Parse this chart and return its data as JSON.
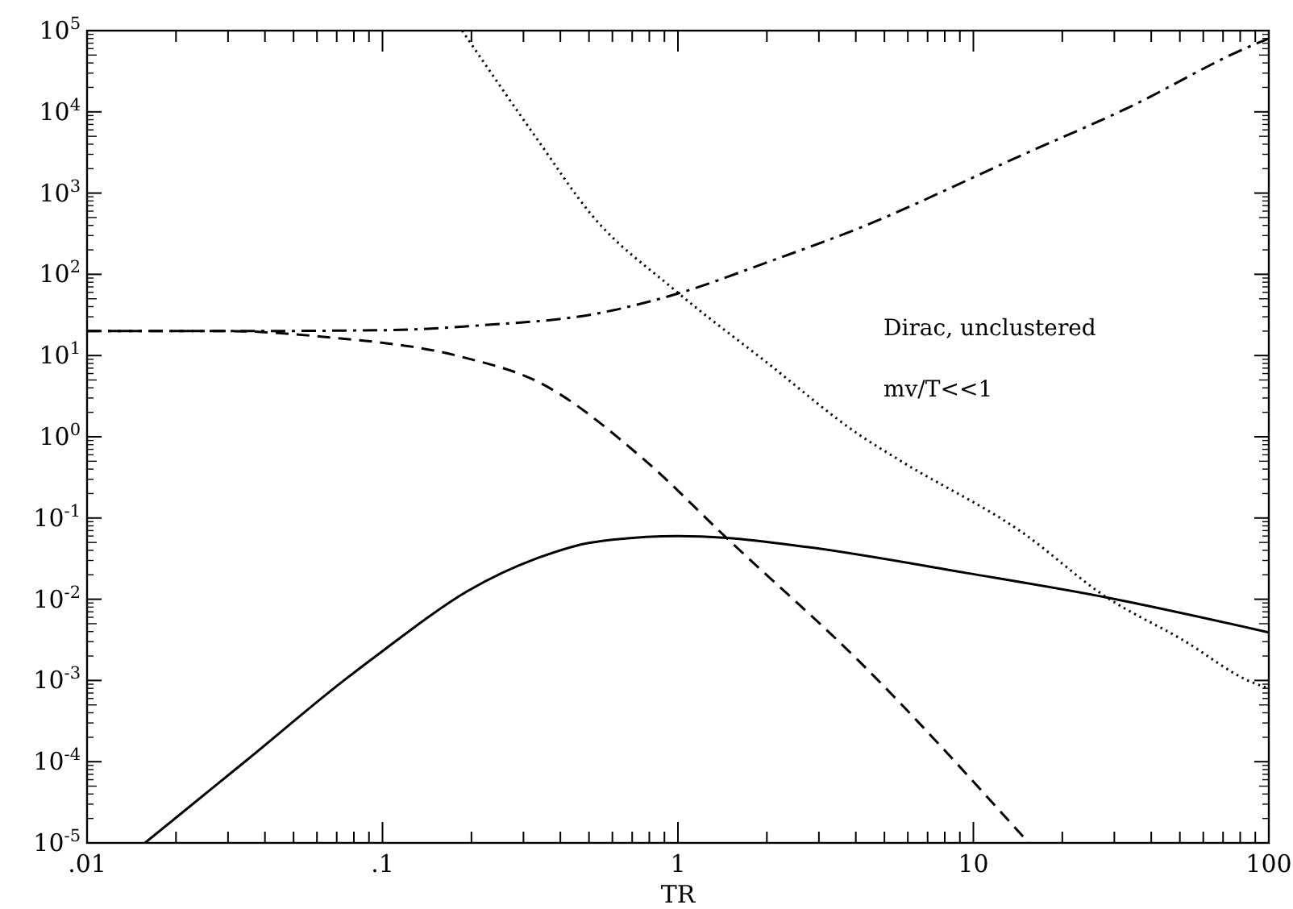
{
  "chart_data": {
    "type": "line",
    "xlabel": "TR",
    "log": "xy",
    "grid": false,
    "tick_labels": "xy",
    "xlim": [
      0.01,
      100
    ],
    "ylim": [
      1e-05,
      100000.0
    ],
    "xticks": [
      {
        "value": 0.01,
        "label": ".01"
      },
      {
        "value": 0.02,
        "label": null
      },
      {
        "value": 0.03,
        "label": null
      },
      {
        "value": 0.04,
        "label": null
      },
      {
        "value": 0.05,
        "label": null
      },
      {
        "value": 0.06,
        "label": null
      },
      {
        "value": 0.07,
        "label": null
      },
      {
        "value": 0.08,
        "label": null
      },
      {
        "value": 0.09,
        "label": null
      },
      {
        "value": 0.1,
        "label": ".1"
      },
      {
        "value": 0.2,
        "label": null
      },
      {
        "value": 0.3,
        "label": null
      },
      {
        "value": 0.4,
        "label": null
      },
      {
        "value": 0.5,
        "label": null
      },
      {
        "value": 0.6,
        "label": null
      },
      {
        "value": 0.7,
        "label": null
      },
      {
        "value": 0.8,
        "label": null
      },
      {
        "value": 0.9,
        "label": null
      },
      1,
      {
        "value": 2,
        "label": null
      },
      {
        "value": 3,
        "label": null
      },
      {
        "value": 4,
        "label": null
      },
      {
        "value": 5,
        "label": null
      },
      {
        "value": 6,
        "label": null
      },
      {
        "value": 7,
        "label": null
      },
      {
        "value": 8,
        "label": null
      },
      {
        "value": 9,
        "label": null
      },
      10,
      {
        "value": 20,
        "label": null
      },
      {
        "value": 30,
        "label": null
      },
      {
        "value": 40,
        "label": null
      },
      {
        "value": 50,
        "label": null
      },
      {
        "value": 60,
        "label": null
      },
      {
        "value": 70,
        "label": null
      },
      {
        "value": 80,
        "label": null
      },
      {
        "value": 90,
        "label": null
      },
      100
    ],
    "yticks": [
      {
        "value": 1e-05,
        "label": "10$^{-5}$"
      },
      {
        "value": 0.0001,
        "label": "10$^{-4}$"
      },
      {
        "value": 0.001,
        "label": "10$^{-3}$"
      },
      {
        "value": 0.01,
        "label": "10$^{-2}$"
      },
      {
        "value": 0.1,
        "label": "10$^{-1}$"
      },
      {
        "value": 1,
        "label": "10$^{0}$"
      },
      {
        "value": 10,
        "label": "10$^{1}$"
      },
      {
        "value": 100,
        "label": "10$^{2}$"
      },
      {
        "value": 1000,
        "label": "10$^{3}$"
      },
      {
        "value": 10000,
        "label": "10$^{4}$"
      },
      {
        "value": 100000,
        "label": "10$^{5}$"
      }
    ],
    "annotations": [
      "Dirac, unclustered",
      "mv/T<<1"
    ],
    "series": [
      {
        "color": "#000000",
        "line_style": "solid",
        "x": [
          0.0157,
          0.035,
          0.074,
          0.1,
          0.194,
          0.334,
          0.51,
          1,
          1.46,
          2.73,
          9.5,
          28.3,
          100
        ],
        "values": [
          1e-05,
          0.000107,
          0.001,
          0.0023,
          0.0126,
          0.032,
          0.05,
          0.06,
          0.057,
          0.044,
          0.021,
          0.0105,
          0.0039
        ]
      },
      {
        "color": "#000000",
        "line_style": "dashed",
        "x": [
          0.01,
          0.03,
          0.063,
          0.186,
          0.334,
          0.77,
          1.46,
          4.12,
          15.4
        ],
        "values": [
          20,
          20,
          17,
          9.6,
          4.8,
          0.52,
          0.057,
          0.0017,
          1e-05
        ]
      },
      {
        "color": "#000000",
        "line_style": "dotted",
        "x": [
          0.186,
          0.334,
          0.51,
          0.97,
          2,
          4.12,
          5.75,
          14.5,
          28.3,
          50.8,
          87.7,
          100
        ],
        "values": [
          100000,
          4600,
          540,
          65,
          8.2,
          1.05,
          0.49,
          0.068,
          0.0105,
          0.0032,
          0.00095,
          0.0008
        ]
      },
      {
        "color": "#000000",
        "line_style": "dashdot",
        "x": [
          0.01,
          0.03,
          0.1,
          0.22,
          0.51,
          1,
          2,
          4.1,
          14.5,
          33,
          87,
          100
        ],
        "values": [
          20,
          20,
          20.5,
          23.7,
          32,
          58,
          140,
          370,
          2900,
          11000,
          65000,
          80000
        ]
      }
    ]
  }
}
